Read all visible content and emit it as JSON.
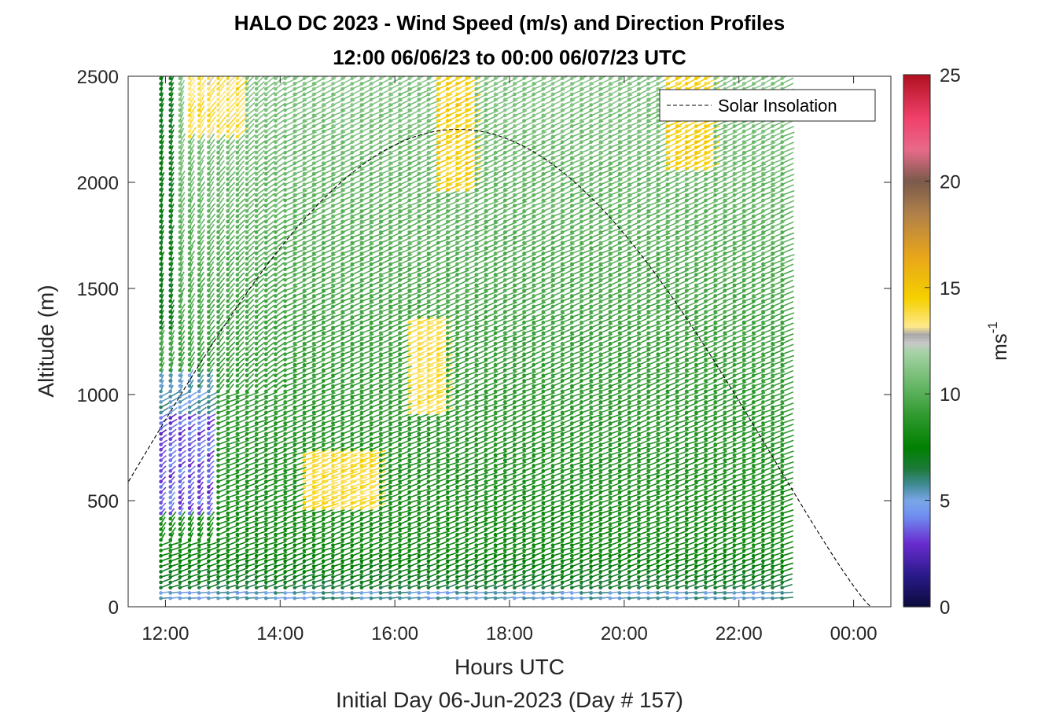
{
  "chart_data": {
    "type": "wind-barb-profile",
    "title_line1": "HALO DC 2023 - Wind Speed (m/s) and Direction Profiles",
    "title_line2": "12:00 06/06/23 to 00:00 06/07/23  UTC",
    "xlabel": "Hours UTC",
    "xlabel_sub": "Initial Day 06-Jun-2023 (Day # 157)",
    "ylabel": "Altitude (m)",
    "x_ticks": [
      "12:00",
      "14:00",
      "16:00",
      "18:00",
      "20:00",
      "22:00",
      "00:00"
    ],
    "x_tick_hours": [
      12,
      14,
      16,
      18,
      20,
      22,
      24
    ],
    "xlim_hours": [
      11.35,
      24.65
    ],
    "y_ticks": [
      "0",
      "500",
      "1000",
      "1500",
      "2000",
      "2500"
    ],
    "y_tick_values": [
      0,
      500,
      1000,
      1500,
      2000,
      2500
    ],
    "ylim": [
      0,
      2500
    ],
    "legend": {
      "label": "Solar Insolation",
      "placement": "top-right"
    },
    "insolation_curve": {
      "sunrise_hour": 9.9,
      "sunset_hour": 24.3,
      "peak_hour": 17.1,
      "peak_altitude_equiv": 2250
    },
    "profiles": {
      "start_hour": 11.92,
      "interval_minutes": 10,
      "count": 66,
      "altitude_min": 40,
      "altitude_max": 2500,
      "altitude_step": 25
    },
    "colorbar": {
      "label": "ms",
      "label_superscript": "-1",
      "ticks": [
        "0",
        "5",
        "10",
        "15",
        "20",
        "25"
      ],
      "tick_values": [
        0,
        5,
        10,
        15,
        20,
        25
      ],
      "range": [
        0,
        25
      ],
      "stops": [
        {
          "v": 0.0,
          "color": "#0b0b3b"
        },
        {
          "v": 1.5,
          "color": "#2a1a8a"
        },
        {
          "v": 3.0,
          "color": "#6a2ccf"
        },
        {
          "v": 4.3,
          "color": "#6f8ff0"
        },
        {
          "v": 5.0,
          "color": "#7aa6e8"
        },
        {
          "v": 5.8,
          "color": "#3e8a90"
        },
        {
          "v": 6.5,
          "color": "#1d7a3a"
        },
        {
          "v": 7.5,
          "color": "#008000"
        },
        {
          "v": 9.0,
          "color": "#2f9a2f"
        },
        {
          "v": 10.5,
          "color": "#6ab86a"
        },
        {
          "v": 12.0,
          "color": "#a6d3a6"
        },
        {
          "v": 12.4,
          "color": "#c8c8c8"
        },
        {
          "v": 12.8,
          "color": "#a8a8a8"
        },
        {
          "v": 13.2,
          "color": "#ffe98a"
        },
        {
          "v": 14.5,
          "color": "#f5d000"
        },
        {
          "v": 16.5,
          "color": "#e8a51a"
        },
        {
          "v": 18.5,
          "color": "#b0804a"
        },
        {
          "v": 20.0,
          "color": "#7a5a4a"
        },
        {
          "v": 21.5,
          "color": "#e86a8a"
        },
        {
          "v": 23.0,
          "color": "#f0406a"
        },
        {
          "v": 25.0,
          "color": "#b01020"
        }
      ]
    }
  }
}
